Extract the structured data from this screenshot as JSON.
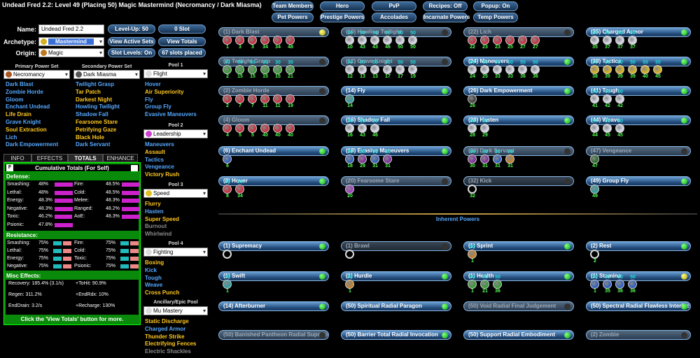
{
  "window_title": "Undead Fred 2.2: Level 49 (Placing 50) Magic Mastermind (Necromancy / Dark Miasma)",
  "top_buttons": [
    "Team Members",
    "Hero",
    "PvP",
    "Recipes: Off",
    "Popup: On",
    "Pet Powers",
    "Prestige Powers",
    "Accolades",
    "Incarnate Powers",
    "Temp Powers"
  ],
  "name_label": "Name:",
  "name_value": "Undead Fred 2.2",
  "archetype_label": "Archetype:",
  "archetype_value": "Mastermind",
  "origin_label": "Origin:",
  "origin_value": "Magic",
  "side_buttons": [
    "Level-Up: 50",
    "0 Slot",
    "View Active Sets",
    "View Totals",
    "Slot Levels: On",
    "67 slots placed"
  ],
  "primary_head": "Primary Power Set",
  "primary_value": "Necromancy",
  "secondary_head": "Secondary Power Set",
  "secondary_value": "Dark Miasma",
  "primary_list": [
    {
      "t": "Dark Blast",
      "c": "b"
    },
    {
      "t": "Zombie Horde",
      "c": "b"
    },
    {
      "t": "Gloom",
      "c": "b"
    },
    {
      "t": "Enchant Undead",
      "c": "b"
    },
    {
      "t": "Life Drain",
      "c": "y"
    },
    {
      "t": "Grave Knight",
      "c": "b"
    },
    {
      "t": "Soul Extraction",
      "c": "y"
    },
    {
      "t": "Lich",
      "c": "b"
    },
    {
      "t": "Dark Empowerment",
      "c": "b"
    }
  ],
  "secondary_list": [
    {
      "t": "Twilight Grasp",
      "c": "b"
    },
    {
      "t": "Tar Patch",
      "c": "y"
    },
    {
      "t": "Darkest Night",
      "c": "y"
    },
    {
      "t": "Howling Twilight",
      "c": "b"
    },
    {
      "t": "Shadow Fall",
      "c": "b"
    },
    {
      "t": "Fearsome Stare",
      "c": "y"
    },
    {
      "t": "Petrifying Gaze",
      "c": "y"
    },
    {
      "t": "Black Hole",
      "c": "y"
    },
    {
      "t": "Dark Servant",
      "c": "b"
    }
  ],
  "pools": [
    {
      "head": "Pool 1",
      "value": "Flight",
      "list": [
        {
          "t": "Hover",
          "c": "b"
        },
        {
          "t": "Air Superiority",
          "c": "y"
        },
        {
          "t": "Fly",
          "c": "b"
        },
        {
          "t": "Group Fly",
          "c": "b"
        },
        {
          "t": "Evasive Maneuvers",
          "c": "b"
        }
      ]
    },
    {
      "head": "Pool 2",
      "value": "Leadership",
      "list": [
        {
          "t": "Maneuvers",
          "c": "b"
        },
        {
          "t": "Assault",
          "c": "y"
        },
        {
          "t": "Tactics",
          "c": "b"
        },
        {
          "t": "Vengeance",
          "c": "b"
        },
        {
          "t": "Victory Rush",
          "c": "y"
        }
      ]
    },
    {
      "head": "Pool 3",
      "value": "Speed",
      "list": [
        {
          "t": "Flurry",
          "c": "y"
        },
        {
          "t": "Hasten",
          "c": "b"
        },
        {
          "t": "Super Speed",
          "c": "y"
        },
        {
          "t": "Burnout",
          "c": "g"
        },
        {
          "t": "Whirlwind",
          "c": "g"
        }
      ]
    },
    {
      "head": "Pool 4",
      "value": "Fighting",
      "list": [
        {
          "t": "Boxing",
          "c": "y"
        },
        {
          "t": "Kick",
          "c": "b"
        },
        {
          "t": "Tough",
          "c": "b"
        },
        {
          "t": "Weave",
          "c": "b"
        },
        {
          "t": "Cross Punch",
          "c": "y"
        }
      ]
    },
    {
      "head": "Ancillary/Epic Pool",
      "value": "Mu Mastery",
      "list": [
        {
          "t": "Static Discharge",
          "c": "y"
        },
        {
          "t": "Charged Armor",
          "c": "b"
        },
        {
          "t": "Thunder Strike",
          "c": "y"
        },
        {
          "t": "Electrifying Fences",
          "c": "y"
        },
        {
          "t": "Electric Shackles",
          "c": "g"
        }
      ]
    }
  ],
  "tabs": [
    "INFO",
    "EFFECTS",
    "TOTALS",
    "ENHANCE"
  ],
  "totals_title": "Cumulative Totals (For Self)",
  "totals_f": "F",
  "defense_head": "Defense:",
  "defense": [
    {
      "l": "Smashing:",
      "v": "48%",
      "fill": 1.0
    },
    {
      "l": "Fire:",
      "v": "48.5%",
      "fill": 1.0
    },
    {
      "l": "Lethal:",
      "v": "48%",
      "fill": 1.0
    },
    {
      "l": "Cold:",
      "v": "48.5%",
      "fill": 1.0
    },
    {
      "l": "Energy:",
      "v": "48.3%",
      "fill": 1.0
    },
    {
      "l": "Melee:",
      "v": "48.3%",
      "fill": 1.0
    },
    {
      "l": "Negative:",
      "v": "48.3%",
      "fill": 1.0
    },
    {
      "l": "Ranged:",
      "v": "48.2%",
      "fill": 1.0
    },
    {
      "l": "Toxic:",
      "v": "46.2%",
      "fill": 0.96
    },
    {
      "l": "AoE:",
      "v": "48.3%",
      "fill": 1.0
    },
    {
      "l": "Psionic:",
      "v": "47.8%",
      "fill": 0.99
    }
  ],
  "resist_head": "Resistance:",
  "resistance": [
    {
      "l": "Smashing:",
      "v": "75%"
    },
    {
      "l": "Fire:",
      "v": "75%"
    },
    {
      "l": "Lethal:",
      "v": "75%"
    },
    {
      "l": "Cold:",
      "v": "75%"
    },
    {
      "l": "Energy:",
      "v": "75%"
    },
    {
      "l": "Toxic:",
      "v": "75%"
    },
    {
      "l": "Negative:",
      "v": "75%"
    },
    {
      "l": "Psionic:",
      "v": "75%"
    }
  ],
  "misc_head": "Misc Effects:",
  "misc": [
    "Recovery: 185.4% (3.1/s)",
    "+ToHit: 90.9%",
    "Regen: 311.2%",
    "+EndRdx: 10%",
    "EndDrain: 3.2/s",
    "+Recharge: 130%"
  ],
  "totals_footer": "Click the 'View Totals' button for more.",
  "inherent_head": "Inherent Powers",
  "colors": {
    "accent": "#55a8ff",
    "selected": "#ffc820",
    "defense_bar": "#cc22cc",
    "res_bar_a": "#22bbbb",
    "res_bar_b": "#ee8888",
    "panel": "#0a8a0a"
  },
  "columns": [
    [
      {
        "n": "(1) Dark Blast",
        "s": "dim",
        "d": "y",
        "e": [
          "c",
          "c",
          "c",
          "c",
          "c",
          "c"
        ],
        "lv": [
          "1",
          "3",
          "3",
          "34",
          "34",
          "48"
        ],
        "ol": [
          "",
          "",
          "",
          "",
          "",
          ""
        ]
      },
      {
        "n": "(2) Twilight Grasp",
        "s": "dim",
        "d": "k",
        "e": [
          "g",
          "g",
          "g",
          "g",
          "g",
          "g"
        ],
        "lv": [
          "2",
          "15",
          "15",
          "15",
          "15",
          "21"
        ],
        "ol": [
          "50",
          "50",
          "50",
          "30",
          "30",
          "30"
        ]
      },
      {
        "n": "(2) Zombie Horde",
        "s": "dim",
        "d": "k",
        "e": [
          "c",
          "c",
          "c",
          "c",
          "c",
          "c"
        ],
        "lv": [
          "2",
          "7",
          "7",
          "11",
          "11",
          "19"
        ],
        "ol": [
          "",
          "",
          "",
          "",
          "",
          ""
        ]
      },
      {
        "n": "(4) Gloom",
        "s": "dim",
        "d": "k",
        "e": [
          "c",
          "c",
          "c",
          "c",
          "c",
          "c"
        ],
        "lv": [
          "4",
          "5",
          "5",
          "40",
          "40",
          "40"
        ],
        "ol": [
          "",
          "",
          "",
          "",
          "",
          ""
        ]
      },
      {
        "n": "(6) Enchant Undead",
        "s": "",
        "d": "g",
        "e": [
          "b"
        ],
        "lv": [
          "6"
        ],
        "ol": [
          ""
        ]
      },
      {
        "n": "(8) Hover",
        "s": "",
        "d": "g",
        "e": [
          "c",
          "c"
        ],
        "lv": [
          "8",
          "34"
        ],
        "ol": [
          "30",
          "30"
        ]
      }
    ],
    [
      {
        "n": "(10) Howling Twilight",
        "s": "dim",
        "d": "k",
        "e": [
          "w",
          "w",
          "w",
          "w",
          "w",
          "w"
        ],
        "lv": [
          "10",
          "43",
          "43",
          "46",
          "50",
          "50"
        ],
        "ol": [
          "50",
          "50",
          "50",
          "50",
          "50",
          "50"
        ]
      },
      {
        "n": "(12) Grave Knight",
        "s": "dim",
        "d": "k",
        "e": [
          "w",
          "w",
          "w",
          "w",
          "w",
          "w"
        ],
        "lv": [
          "12",
          "13",
          "13",
          "17",
          "17",
          "19"
        ],
        "ol": [
          "50",
          "50",
          "50",
          "50",
          "50",
          "50"
        ]
      },
      {
        "n": "(14) Fly",
        "s": "",
        "d": "g",
        "e": [
          "t"
        ],
        "lv": [
          "14"
        ],
        "ol": [
          ""
        ]
      },
      {
        "n": "(16) Shadow Fall",
        "s": "",
        "d": "g",
        "e": [
          "w",
          "w",
          "w"
        ],
        "lv": [
          "16",
          "43",
          "46"
        ],
        "ol": [
          "50",
          "50",
          "50"
        ]
      },
      {
        "n": "(18) Evasive Maneuvers",
        "s": "",
        "d": "g",
        "e": [
          "b",
          "p",
          "b",
          "p"
        ],
        "lv": [
          "18",
          "29",
          "31",
          "31"
        ],
        "ol": [
          "50",
          "50",
          "50",
          "50"
        ]
      },
      {
        "n": "(20) Fearsome Stare",
        "s": "dim",
        "d": "k",
        "e": [
          "v"
        ],
        "lv": [
          "20"
        ],
        "ol": [
          ""
        ]
      }
    ],
    [
      {
        "n": "(22) Lich",
        "s": "dim",
        "d": "k",
        "e": [
          "c",
          "c",
          "c",
          "c",
          "c",
          "c"
        ],
        "lv": [
          "22",
          "23",
          "23",
          "25",
          "27",
          "27"
        ],
        "ol": [
          "",
          "",
          "",
          "",
          "",
          ""
        ]
      },
      {
        "n": "(24) Maneuvers",
        "s": "",
        "d": "g",
        "e": [
          "w",
          "w",
          "w",
          "w",
          "w",
          "w"
        ],
        "lv": [
          "24",
          "25",
          "33",
          "33",
          "36",
          "36"
        ],
        "ol": [
          "50",
          "50",
          "50",
          "50",
          "50",
          "50"
        ]
      },
      {
        "n": "(26) Dark Empowerment",
        "s": "",
        "d": "g",
        "e": [
          "k"
        ],
        "lv": [
          "26"
        ],
        "ol": [
          ""
        ]
      },
      {
        "n": "(28) Hasten",
        "s": "",
        "d": "g",
        "e": [
          "w",
          "w"
        ],
        "lv": [
          "28",
          "29"
        ],
        "ol": [
          "50",
          "50"
        ]
      },
      {
        "n": "(30) Dark Servant",
        "s": "dim",
        "d": "k",
        "e": [
          "p",
          "p",
          "b",
          "o"
        ],
        "lv": [
          "30",
          "31",
          "31",
          "31"
        ],
        "ol": [
          "50",
          "50",
          "50",
          "50"
        ]
      },
      {
        "n": "(32) Kick",
        "s": "off",
        "d": "k",
        "e": [
          "x"
        ],
        "lv": [
          "32"
        ],
        "ol": [
          ""
        ]
      }
    ],
    [
      {
        "n": "(35) Charged Armor",
        "s": "",
        "d": "g",
        "e": [
          "w",
          "w",
          "w",
          "w"
        ],
        "lv": [
          "35",
          "37",
          "37",
          "37"
        ],
        "ol": [
          "50",
          "50",
          "50",
          "50"
        ]
      },
      {
        "n": "(38) Tactics",
        "s": "",
        "d": "g",
        "e": [
          "y",
          "y",
          "y",
          "y",
          "y",
          "y"
        ],
        "lv": [
          "38",
          "39",
          "39",
          "39",
          "40",
          "45"
        ],
        "ol": [
          "50",
          "50",
          "50",
          "50",
          "50",
          "50"
        ]
      },
      {
        "n": "(41) Tough",
        "s": "",
        "d": "g",
        "e": [
          "w",
          "w",
          "w"
        ],
        "lv": [
          "41",
          "42",
          "42"
        ],
        "ol": [
          "50",
          "50",
          "50"
        ]
      },
      {
        "n": "(44) Weave",
        "s": "",
        "d": "g",
        "e": [
          "w",
          "w",
          "w"
        ],
        "lv": [
          "44",
          "45",
          "45"
        ],
        "ol": [
          "50",
          "50",
          "50"
        ]
      },
      {
        "n": "(47) Vengeance",
        "s": "dim",
        "d": "k",
        "e": [
          "n"
        ],
        "lv": [
          "47"
        ],
        "ol": [
          ""
        ]
      },
      {
        "n": "(49) Group Fly",
        "s": "",
        "d": "g",
        "e": [
          "t"
        ],
        "lv": [
          "49"
        ],
        "ol": [
          ""
        ]
      }
    ]
  ],
  "inherent": [
    [
      {
        "n": "(1) Supremacy",
        "s": "",
        "d": "g",
        "e": [
          "x"
        ],
        "lv": [
          ""
        ],
        "ol": [
          ""
        ]
      },
      {
        "n": "(1) Swift",
        "s": "",
        "d": "g",
        "e": [
          "t"
        ],
        "lv": [
          "1"
        ],
        "ol": [
          "50"
        ]
      },
      {
        "n": "(14) Afterburner",
        "s": "",
        "d": "g",
        "e": [],
        "lv": [],
        "ol": []
      },
      {
        "n": "(50) Banished Pantheon Radial Superio",
        "s": "dim",
        "d": "k",
        "e": [],
        "lv": [],
        "ol": []
      }
    ],
    [
      {
        "n": "(1) Brawl",
        "s": "off",
        "d": "k",
        "e": [
          "x"
        ],
        "lv": [
          ""
        ],
        "ol": [
          ""
        ]
      },
      {
        "n": "(1) Hurdle",
        "s": "",
        "d": "g",
        "e": [
          "o"
        ],
        "lv": [
          "1"
        ],
        "ol": [
          "50"
        ]
      },
      {
        "n": "(50) Spiritual Radial Paragon",
        "s": "",
        "d": "g",
        "e": [],
        "lv": [],
        "ol": []
      },
      {
        "n": "(50) Barrier Total Radial Invocation",
        "s": "",
        "d": "g",
        "e": [],
        "lv": [],
        "ol": []
      }
    ],
    [
      {
        "n": "(1) Sprint",
        "s": "",
        "d": "g",
        "e": [
          "o"
        ],
        "lv": [
          "1"
        ],
        "ol": [
          "50"
        ]
      },
      {
        "n": "(1) Health",
        "s": "",
        "d": "g",
        "e": [
          "g",
          "g",
          "g"
        ],
        "lv": [
          "1",
          "21",
          "36"
        ],
        "ol": [
          "50",
          "50",
          "50"
        ]
      },
      {
        "n": "(50) Void Radial Final Judgement",
        "s": "dim",
        "d": "k",
        "e": [],
        "lv": [],
        "ol": []
      },
      {
        "n": "(50) Support Radial Embodiment",
        "s": "",
        "d": "g",
        "e": [],
        "lv": [],
        "ol": []
      }
    ],
    [
      {
        "n": "(2) Rest",
        "s": "",
        "d": "g",
        "e": [
          "x"
        ],
        "lv": [
          "2"
        ],
        "ol": [
          ""
        ]
      },
      {
        "n": "(1) Stamina",
        "s": "",
        "d": "y",
        "e": [
          "b",
          "b",
          "b",
          "b"
        ],
        "lv": [
          "1",
          "35",
          "36",
          "36"
        ],
        "ol": [
          "50",
          "50",
          "50",
          "50"
        ]
      },
      {
        "n": "(50) Spectral Radial Flawless Interfac",
        "s": "",
        "d": "g",
        "e": [],
        "lv": [],
        "ol": []
      },
      {
        "n": "(2) Zombie",
        "s": "dim",
        "d": "k",
        "e": [],
        "lv": [],
        "ol": []
      }
    ]
  ]
}
